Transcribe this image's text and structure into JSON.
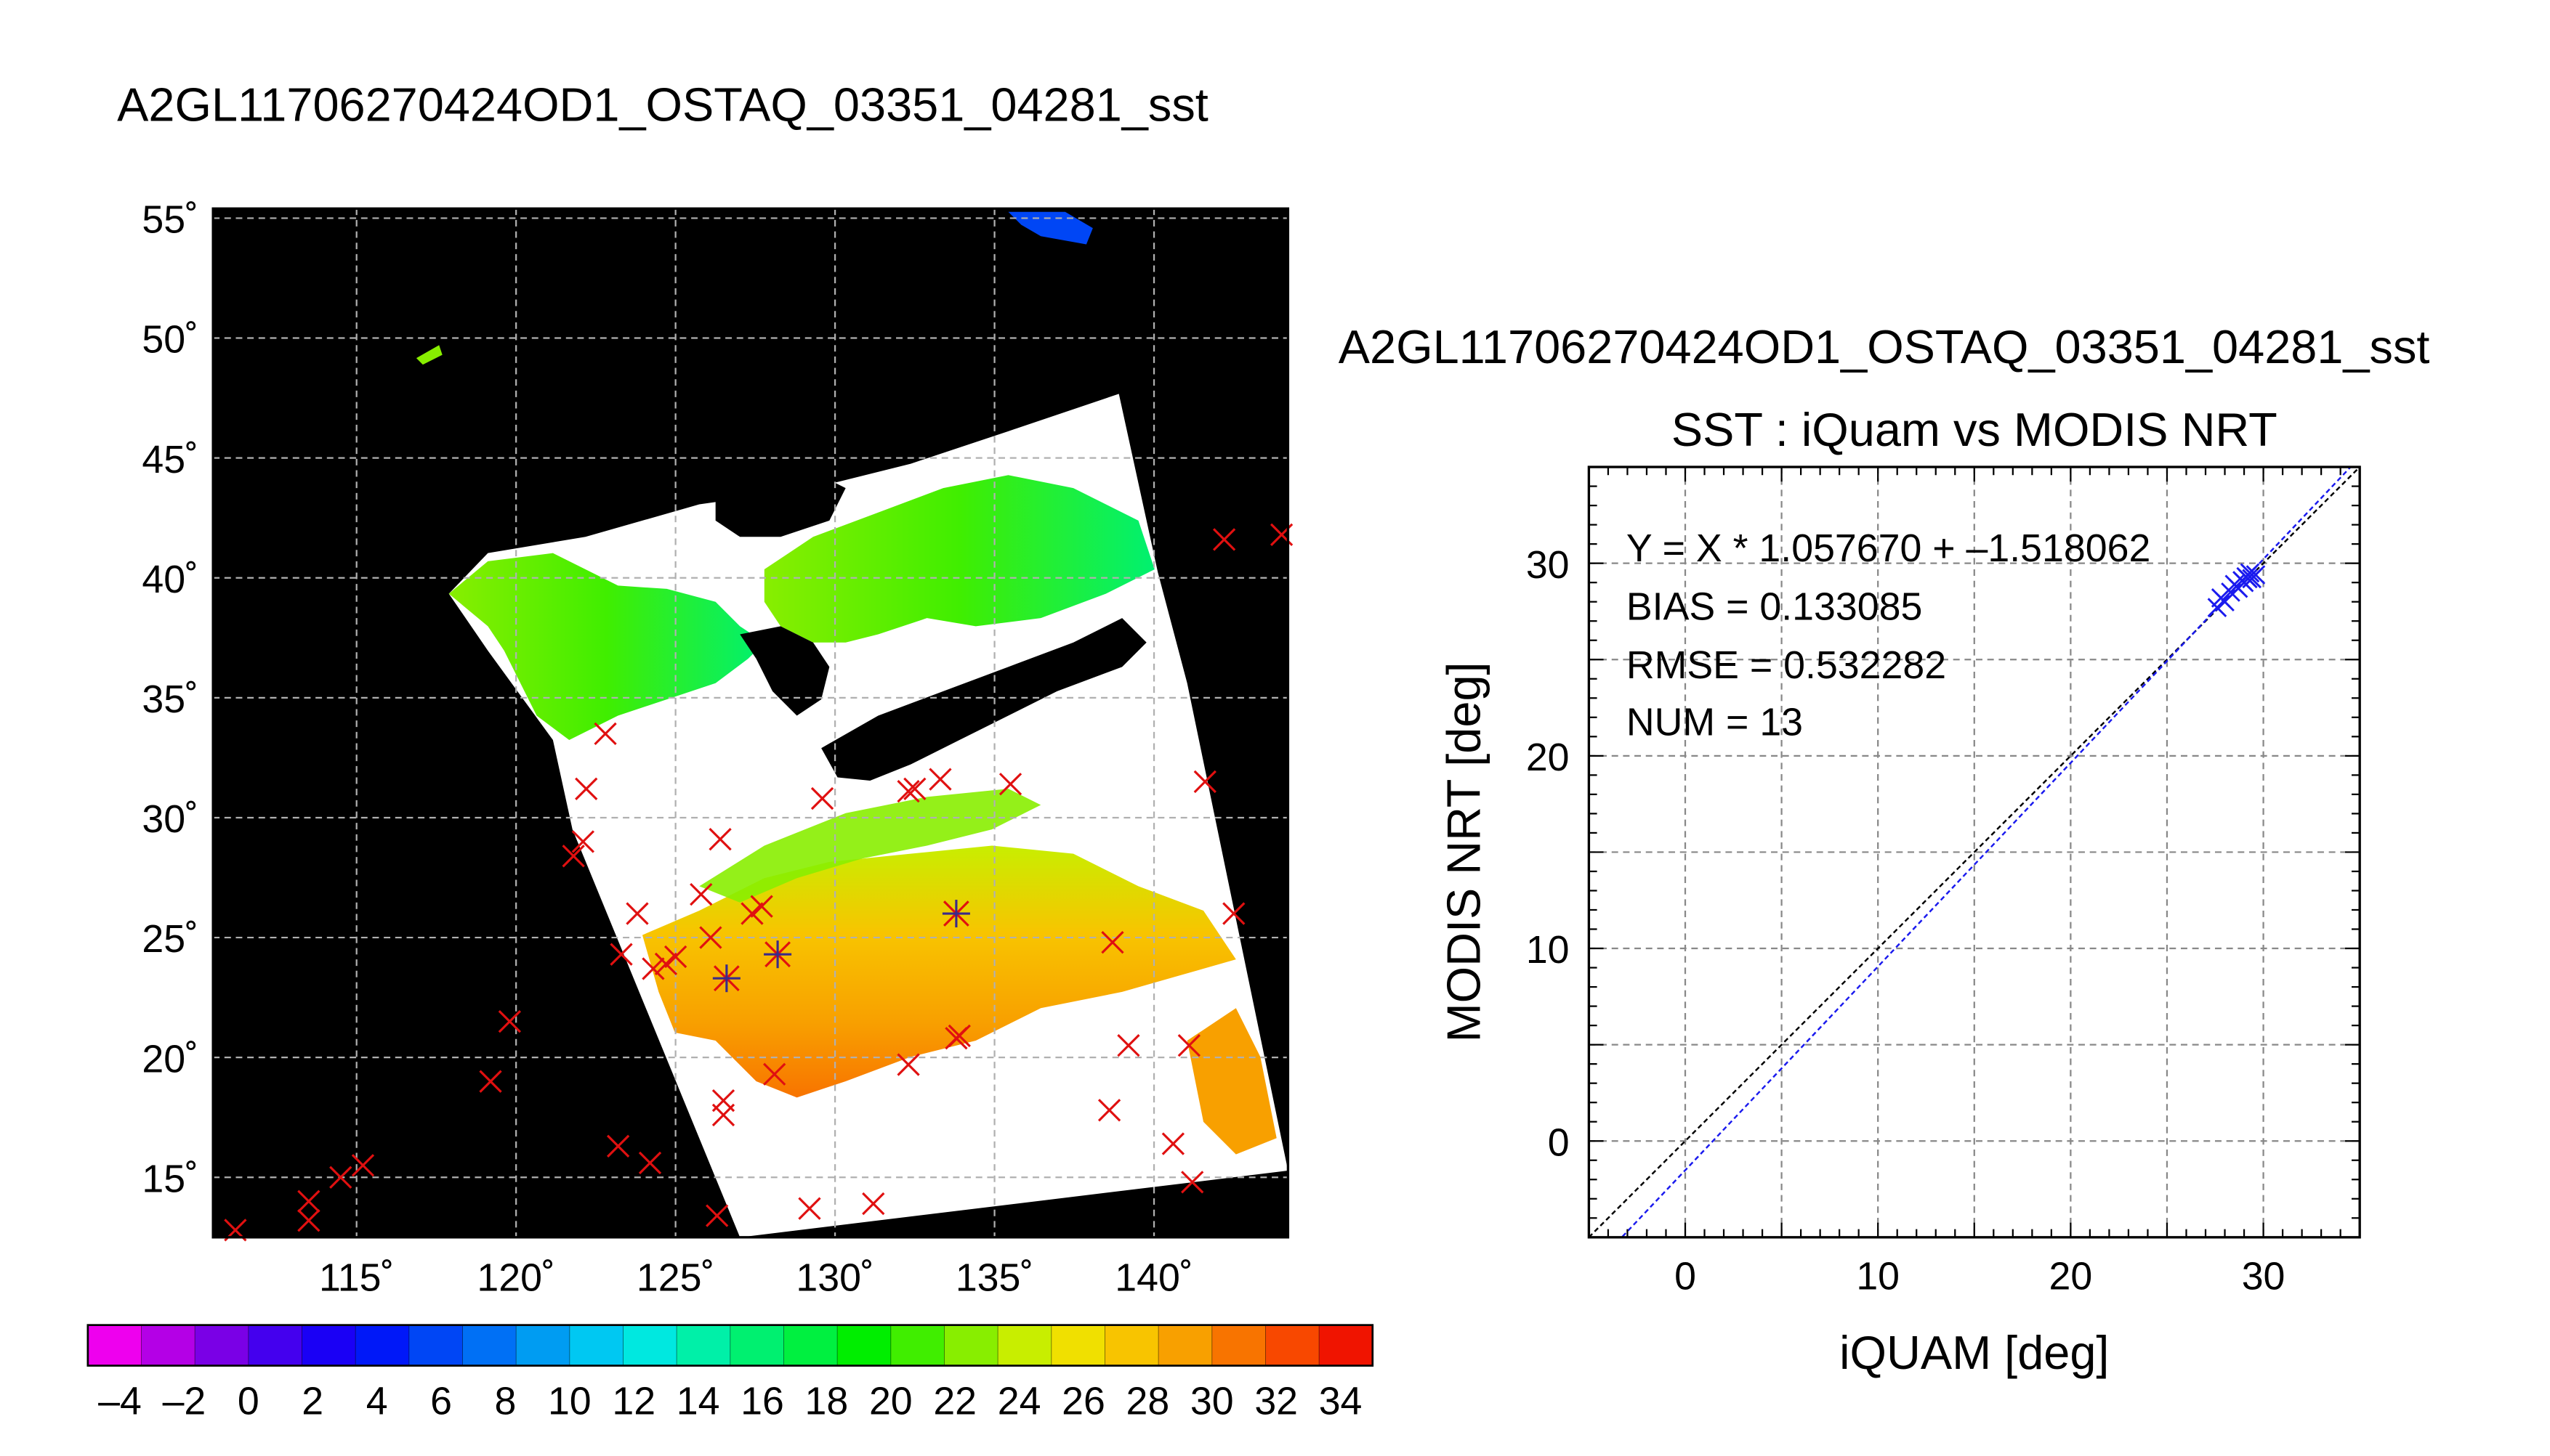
{
  "map": {
    "title": "A2GL11706270424OD1_OSTAQ_03351_04281_sst",
    "lat_ticks": [
      "55˚",
      "50˚",
      "45˚",
      "40˚",
      "35˚",
      "30˚",
      "25˚",
      "20˚",
      "15˚"
    ],
    "lon_ticks": [
      "115˚",
      "120˚",
      "125˚",
      "130˚",
      "135˚",
      "140˚"
    ],
    "lat_values": [
      55,
      50,
      45,
      40,
      35,
      30,
      25,
      20,
      15
    ],
    "lon_values": [
      115,
      120,
      125,
      130,
      135,
      140
    ],
    "extent": {
      "lon_min": 110.5,
      "lon_max": 144.2,
      "lat_min": 12.5,
      "lat_max": 55.4
    },
    "colors": {
      "land": "#000000",
      "cloud": "#ffffff",
      "grid": "#b0b0b0",
      "marker": "#e01010",
      "match_marker": "#3a2a8a"
    },
    "insitu_points_red": [
      [
        111.2,
        12.8
      ],
      [
        113.5,
        14.0
      ],
      [
        113.5,
        13.2
      ],
      [
        114.5,
        15.0
      ],
      [
        115.2,
        15.5
      ],
      [
        119.2,
        19.0
      ],
      [
        119.8,
        21.5
      ],
      [
        123.2,
        16.3
      ],
      [
        124.2,
        15.6
      ],
      [
        126.3,
        13.4
      ],
      [
        126.5,
        18.2
      ],
      [
        126.5,
        17.6
      ],
      [
        128.1,
        19.3
      ],
      [
        129.2,
        13.7
      ],
      [
        131.2,
        13.9
      ],
      [
        132.3,
        19.7
      ],
      [
        133.8,
        20.8
      ],
      [
        133.9,
        20.9
      ],
      [
        138.6,
        17.8
      ],
      [
        139.2,
        20.5
      ],
      [
        140.6,
        16.4
      ],
      [
        141.1,
        20.5
      ],
      [
        141.2,
        14.8
      ],
      [
        142.5,
        26.0
      ],
      [
        141.6,
        31.5
      ],
      [
        142.2,
        41.6
      ],
      [
        144.0,
        41.8
      ],
      [
        122.8,
        33.5
      ],
      [
        122.2,
        31.2
      ],
      [
        122.1,
        29.0
      ],
      [
        121.8,
        28.4
      ],
      [
        123.3,
        24.3
      ],
      [
        123.8,
        26.0
      ],
      [
        124.3,
        23.7
      ],
      [
        124.7,
        23.9
      ],
      [
        125.0,
        24.2
      ],
      [
        125.8,
        26.8
      ],
      [
        126.1,
        25.0
      ],
      [
        126.4,
        29.1
      ],
      [
        127.4,
        26.0
      ],
      [
        127.7,
        26.3
      ],
      [
        129.6,
        30.8
      ],
      [
        132.3,
        31.1
      ],
      [
        132.5,
        31.2
      ],
      [
        133.3,
        31.6
      ],
      [
        135.5,
        31.4
      ],
      [
        138.7,
        24.8
      ]
    ],
    "insitu_points_matched": [
      [
        126.6,
        23.3
      ],
      [
        128.2,
        24.3
      ],
      [
        133.8,
        26.0
      ]
    ]
  },
  "colorbar": {
    "ticks": [
      "–4",
      "–2",
      "0",
      "2",
      "4",
      "6",
      "8",
      "10",
      "12",
      "14",
      "16",
      "18",
      "20",
      "22",
      "24",
      "26",
      "28",
      "30",
      "32",
      "34"
    ],
    "tick_values": [
      -4,
      -2,
      0,
      2,
      4,
      6,
      8,
      10,
      12,
      14,
      16,
      18,
      20,
      22,
      24,
      26,
      28,
      30,
      32,
      34
    ],
    "range": [
      -5,
      35
    ],
    "colors": [
      "#ee00ee",
      "#b400e6",
      "#7a00e6",
      "#4400ee",
      "#1a00f5",
      "#0018f8",
      "#0046f5",
      "#0070f5",
      "#009cf2",
      "#00c8f2",
      "#00e8e0",
      "#00f0a8",
      "#00f070",
      "#00f040",
      "#00ee00",
      "#40ee00",
      "#88ee00",
      "#c8ee00",
      "#f0e000",
      "#f8c400",
      "#f8a000",
      "#f87400",
      "#f84800",
      "#f01400"
    ]
  },
  "scatter": {
    "title_top": "A2GL11706270424OD1_OSTAQ_03351_04281_sst",
    "title": "SST : iQuam vs MODIS NRT",
    "xlabel": "iQUAM [deg]",
    "ylabel": "MODIS NRT [deg]",
    "stats": [
      "Y = X * 1.057670 + –1.518062",
      "BIAS = 0.133085",
      "RMSE = 0.532282",
      "NUM = 13"
    ],
    "x_ticks": [
      "0",
      "10",
      "20",
      "30"
    ],
    "y_ticks": [
      "0",
      "10",
      "20",
      "30"
    ],
    "colors": {
      "points": "#1a1aee",
      "fit_line": "#1a1aee",
      "identity_line": "#000000",
      "grid": "#888888"
    }
  },
  "chart_data": {
    "type": "scatter",
    "title": "SST : iQuam vs MODIS NRT",
    "xlabel": "iQUAM [deg]",
    "ylabel": "MODIS NRT [deg]",
    "xlim": [
      -5,
      35
    ],
    "ylim": [
      -5,
      35
    ],
    "grid": true,
    "x": [
      27.6,
      27.8,
      28.0,
      28.3,
      28.5,
      28.7,
      28.9,
      29.0,
      29.1,
      29.2,
      29.3,
      29.4,
      29.6
    ],
    "y": [
      27.7,
      28.2,
      28.0,
      28.5,
      28.9,
      28.7,
      29.1,
      29.0,
      29.3,
      29.2,
      29.5,
      29.2,
      29.4
    ],
    "fit": {
      "slope": 1.05767,
      "intercept": -1.518062
    },
    "bias": 0.133085,
    "rmse": 0.532282,
    "num": 13
  }
}
